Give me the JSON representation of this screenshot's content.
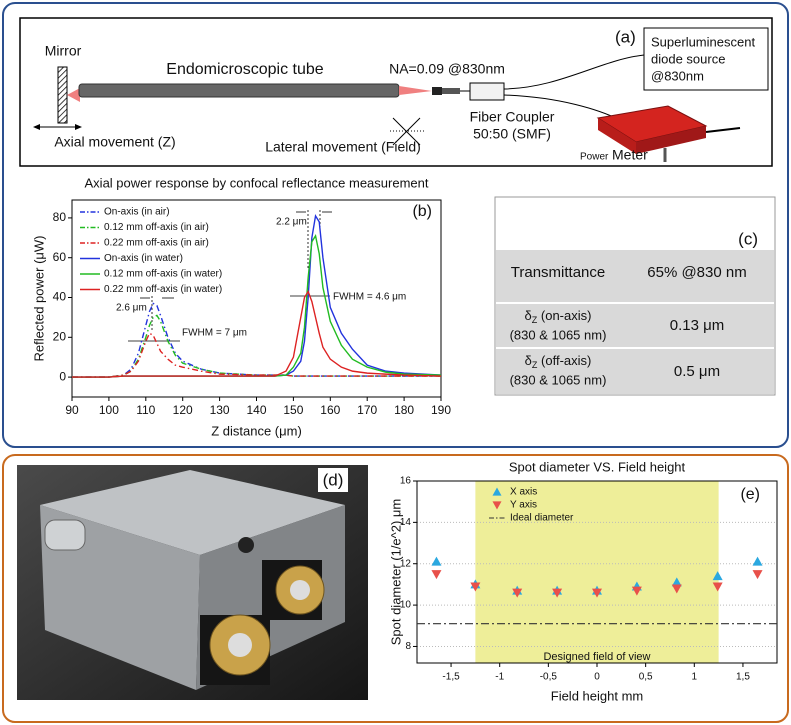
{
  "diagram": {
    "label": "(a)",
    "mirror": "Mirror",
    "tube": "Endomicroscopic tube",
    "na": "NA=0.09 @830nm",
    "source": [
      "Superluminescent",
      "diode source",
      "@830nm"
    ],
    "axial": "Axial movement (Z)",
    "lateral": "Lateral movement (Field)",
    "coupler": [
      "Fiber Coupler",
      "50:50 (SMF)"
    ],
    "meter": [
      "Power",
      "Meter"
    ]
  },
  "table": {
    "label": "(c)",
    "rows": [
      {
        "name": "Transmittance",
        "value": "65% @830 nm"
      },
      {
        "symbol": "δ",
        "sub": "Z",
        "name": " (on-axis)",
        "detail": "(830 & 1065 nm)",
        "value": "0.13 μm"
      },
      {
        "symbol": "δ",
        "sub": "Z",
        "name": " (off-axis)",
        "detail": "(830 & 1065 nm)",
        "value": "0.5 μm"
      }
    ]
  },
  "photo": {
    "label": "(d)"
  },
  "chart_data": [
    {
      "type": "line",
      "title": "Axial power response by confocal reflectance measurement",
      "panel_label": "(b)",
      "x_label": "Z distance (μm)",
      "y_label": "Reflected power (μW)",
      "x": [
        90,
        100,
        104,
        106,
        108,
        110,
        111,
        112,
        113,
        114,
        116,
        118,
        120,
        125,
        130,
        140,
        145,
        148,
        150,
        152,
        153,
        154,
        155,
        156,
        157,
        158,
        160,
        163,
        166,
        170,
        175,
        180,
        190
      ],
      "series": [
        {
          "name": "On-axis (in air)",
          "color": "#2233dd",
          "style": "dashdot",
          "values": [
            0,
            0,
            1,
            4,
            12,
            26,
            33,
            37,
            36,
            31,
            20,
            12,
            8,
            4,
            2,
            1,
            1,
            1,
            0.5,
            0.5,
            0.5,
            0.5,
            0.5,
            0.5,
            0.5,
            0.5,
            0.5,
            0.5,
            0.5,
            0.5,
            0.5,
            0.5,
            0.5
          ]
        },
        {
          "name": "0.12 mm off-axis (in air)",
          "color": "#22bb22",
          "style": "dashdot",
          "values": [
            0,
            0,
            1,
            3,
            9,
            20,
            26,
            30,
            31,
            28,
            18,
            11,
            7,
            4,
            2,
            1,
            1,
            1,
            0.5,
            0.5,
            0.5,
            0.5,
            0.5,
            0.5,
            0.5,
            0.5,
            0.5,
            0.5,
            0.5,
            0.5,
            0.5,
            0.5,
            0.5
          ]
        },
        {
          "name": "0.22 mm off-axis (in air)",
          "color": "#dd2222",
          "style": "dashdot",
          "values": [
            0,
            0,
            1,
            3,
            8,
            18,
            22,
            21,
            17,
            13,
            9,
            6,
            5,
            3,
            1.5,
            1,
            1,
            1,
            0.5,
            0.5,
            0.5,
            0.5,
            0.5,
            0.5,
            0.5,
            0.5,
            0.5,
            0.5,
            0.5,
            0.5,
            0.5,
            0.5,
            0.5
          ]
        },
        {
          "name": "On-axis (in water)",
          "color": "#2233dd",
          "style": "solid",
          "values": [
            0,
            0,
            0.5,
            0.5,
            0.5,
            0.5,
            0.5,
            0.5,
            0.5,
            0.5,
            0.5,
            0.5,
            0.5,
            0.5,
            0.5,
            0.5,
            0.5,
            1,
            3,
            8,
            18,
            40,
            70,
            81,
            78,
            60,
            35,
            22,
            14,
            6,
            3,
            2,
            1
          ]
        },
        {
          "name": "0.12 mm off-axis (in water)",
          "color": "#22bb22",
          "style": "solid",
          "values": [
            0,
            0,
            0.5,
            0.5,
            0.5,
            0.5,
            0.5,
            0.5,
            0.5,
            0.5,
            0.5,
            0.5,
            0.5,
            0.5,
            0.5,
            0.5,
            0.5,
            1,
            5,
            12,
            25,
            50,
            68,
            71,
            62,
            45,
            28,
            16,
            9,
            5,
            2.5,
            1.5,
            1
          ]
        },
        {
          "name": "0.22 mm off-axis (in water)",
          "color": "#dd2222",
          "style": "solid",
          "values": [
            0,
            0,
            0.5,
            0.5,
            0.5,
            0.5,
            0.5,
            0.5,
            0.5,
            0.5,
            0.5,
            0.5,
            0.5,
            0.5,
            0.5,
            0.5,
            0.5,
            3,
            10,
            30,
            40,
            43,
            38,
            30,
            22,
            15,
            9,
            5,
            3,
            2,
            1.5,
            1,
            0.5
          ]
        }
      ],
      "xlim": [
        90,
        190
      ],
      "xticks": [
        90,
        100,
        110,
        120,
        130,
        140,
        150,
        160,
        170,
        180,
        190
      ],
      "ylim": [
        -10,
        89
      ],
      "yticks": [
        0,
        20,
        40,
        60,
        80
      ],
      "grid": false,
      "legend": "upper-left",
      "annotations": [
        "2.2 μm",
        "FWHM = 4.6 μm",
        "2.6 μm",
        "FWHM = 7 μm"
      ]
    },
    {
      "type": "scatter",
      "title": "Spot diameter VS. Field height",
      "panel_label": "(e)",
      "x_label": "Field height mm",
      "y_label": "Spot diameter (1/e^2) μm",
      "x": [
        -1.65,
        -1.25,
        -0.82,
        -0.41,
        0,
        0.41,
        0.82,
        1.24,
        1.65
      ],
      "series": [
        {
          "name": "X axis",
          "color": "#2aa8e0",
          "marker": "triangle-up",
          "values": [
            12.1,
            11.0,
            10.7,
            10.7,
            10.7,
            10.9,
            11.1,
            11.4,
            12.1
          ]
        },
        {
          "name": "Y axis",
          "color": "#e8504a",
          "marker": "triangle-down",
          "values": [
            11.5,
            10.9,
            10.6,
            10.6,
            10.6,
            10.7,
            10.8,
            10.9,
            11.5
          ]
        }
      ],
      "ideal_diameter": {
        "name": "Ideal diameter",
        "value": 9.1,
        "color": "#333333"
      },
      "field_of_view": {
        "label": "Designed field of view",
        "range": [
          -1.25,
          1.25
        ],
        "color": "#eeee99"
      },
      "xlim": [
        -1.85,
        1.85
      ],
      "xticks": [
        {
          "value": -1.5,
          "label": "-1,5"
        },
        -1,
        {
          "value": -0.5,
          "label": "-0,5"
        },
        0,
        {
          "value": 0.5,
          "label": "0,5"
        },
        1,
        {
          "value": 1.5,
          "label": "1,5"
        }
      ],
      "ylim": [
        7.2,
        16
      ],
      "yticks": [
        8,
        10,
        12,
        14,
        16
      ],
      "grid": true,
      "legend": "upper-left"
    }
  ]
}
